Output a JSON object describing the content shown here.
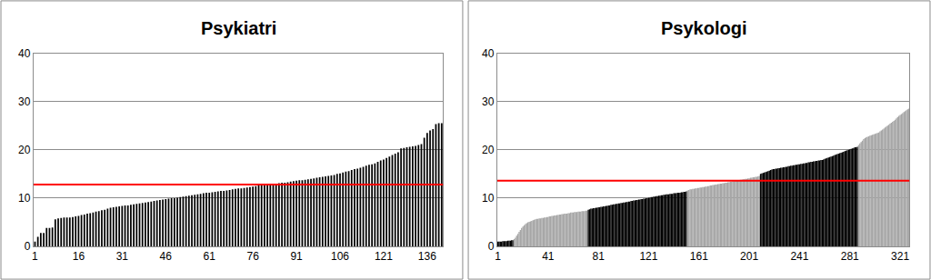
{
  "chart_data": [
    {
      "type": "bar",
      "title": "Psykiatri",
      "x": [
        1,
        2,
        3,
        4,
        5,
        6,
        7,
        8,
        9,
        10,
        11,
        12,
        13,
        14,
        15,
        16,
        17,
        18,
        19,
        20,
        21,
        22,
        23,
        24,
        25,
        26,
        27,
        28,
        29,
        30,
        31,
        32,
        33,
        34,
        35,
        36,
        37,
        38,
        39,
        40,
        41,
        42,
        43,
        44,
        45,
        46,
        47,
        48,
        49,
        50,
        51,
        52,
        53,
        54,
        55,
        56,
        57,
        58,
        59,
        60,
        61,
        62,
        63,
        64,
        65,
        66,
        67,
        68,
        69,
        70,
        71,
        72,
        73,
        74,
        75,
        76,
        77,
        78,
        79,
        80,
        81,
        82,
        83,
        84,
        85,
        86,
        87,
        88,
        89,
        90,
        91,
        92,
        93,
        94,
        95,
        96,
        97,
        98,
        99,
        100,
        101,
        102,
        103,
        104,
        105,
        106,
        107,
        108,
        109,
        110,
        111,
        112,
        113,
        114,
        115,
        116,
        117,
        118,
        119,
        120,
        121,
        122,
        123,
        124,
        125,
        126,
        127,
        128,
        129,
        130,
        131,
        132,
        133,
        134,
        135,
        136,
        137,
        138,
        139,
        140,
        141
      ],
      "values": [
        1.0,
        2.0,
        2.8,
        2.8,
        3.8,
        3.8,
        3.9,
        5.6,
        5.8,
        5.9,
        6.0,
        6.0,
        6.0,
        6.1,
        6.2,
        6.3,
        6.5,
        6.6,
        6.8,
        6.9,
        7.0,
        7.2,
        7.3,
        7.5,
        7.6,
        7.8,
        8.0,
        8.1,
        8.2,
        8.3,
        8.4,
        8.5,
        8.5,
        8.6,
        8.7,
        8.8,
        8.9,
        9.0,
        9.1,
        9.2,
        9.3,
        9.4,
        9.5,
        9.6,
        9.7,
        9.8,
        9.9,
        10.0,
        10.0,
        10.1,
        10.2,
        10.3,
        10.4,
        10.5,
        10.6,
        10.7,
        10.8,
        10.9,
        11.0,
        11.1,
        11.1,
        11.2,
        11.3,
        11.4,
        11.5,
        11.5,
        11.6,
        11.7,
        11.8,
        11.9,
        12.0,
        12.0,
        12.1,
        12.2,
        12.3,
        12.4,
        12.5,
        12.6,
        12.6,
        12.7,
        12.8,
        12.9,
        13.0,
        13.0,
        13.1,
        13.2,
        13.2,
        13.3,
        13.4,
        13.5,
        13.6,
        13.7,
        13.7,
        13.8,
        13.9,
        14.0,
        14.1,
        14.2,
        14.3,
        14.4,
        14.5,
        14.6,
        14.7,
        14.8,
        15.0,
        15.1,
        15.3,
        15.5,
        15.6,
        15.8,
        16.0,
        16.1,
        16.3,
        16.5,
        16.7,
        16.9,
        17.0,
        17.2,
        17.5,
        17.8,
        18.0,
        18.3,
        18.6,
        18.9,
        19.2,
        19.5,
        20.3,
        20.4,
        20.5,
        20.6,
        20.7,
        20.8,
        21.0,
        21.2,
        22.5,
        23.5,
        24.0,
        24.3,
        25.3,
        25.5,
        25.5
      ],
      "color": "#000000",
      "reference_line": {
        "value": 12.8,
        "color": "#ff0000"
      },
      "xlim": [
        0.5,
        141.5
      ],
      "xticks": [
        1,
        16,
        31,
        46,
        61,
        76,
        91,
        106,
        121,
        136
      ],
      "ylim": [
        0,
        40
      ],
      "yticks": [
        0,
        10,
        20,
        30,
        40
      ],
      "grid": true
    },
    {
      "type": "bar",
      "title": "Psykologi",
      "series": [
        {
          "color": "#000000",
          "x": [
            1,
            2,
            3,
            4,
            5,
            6,
            7,
            8,
            9,
            10,
            11,
            12,
            13
          ],
          "values": [
            1.0,
            1.0,
            1.0,
            1.0,
            1.1,
            1.1,
            1.1,
            1.1,
            1.2,
            1.2,
            1.2,
            1.3,
            1.3
          ]
        },
        {
          "color": "#a6a6a6",
          "x": [
            14,
            15,
            16,
            17,
            18,
            19,
            20,
            21,
            22,
            23,
            24,
            25,
            26,
            27,
            28,
            29,
            30,
            31,
            32,
            33,
            34,
            35,
            36,
            37,
            38,
            39,
            40,
            41,
            42,
            43,
            44,
            45,
            46,
            47,
            48,
            49,
            50,
            51,
            52,
            53,
            54,
            55,
            56,
            57,
            58,
            59,
            60,
            61,
            62,
            63,
            64,
            65,
            66,
            67,
            68,
            69,
            70,
            71,
            72
          ],
          "values": [
            1.5,
            1.8,
            2.2,
            2.6,
            3.0,
            3.4,
            3.8,
            4.1,
            4.4,
            4.6,
            4.8,
            5.0,
            5.1,
            5.2,
            5.3,
            5.4,
            5.5,
            5.6,
            5.7,
            5.7,
            5.8,
            5.8,
            5.9,
            5.9,
            6.0,
            6.0,
            6.1,
            6.1,
            6.2,
            6.2,
            6.3,
            6.3,
            6.4,
            6.4,
            6.5,
            6.5,
            6.6,
            6.6,
            6.7,
            6.7,
            6.8,
            6.8,
            6.8,
            6.9,
            6.9,
            7.0,
            7.0,
            7.0,
            7.1,
            7.1,
            7.1,
            7.2,
            7.2,
            7.2,
            7.3,
            7.3,
            7.3,
            7.4,
            7.4
          ]
        },
        {
          "color": "#000000",
          "x": [
            73,
            74,
            75,
            76,
            77,
            78,
            79,
            80,
            81,
            82,
            83,
            84,
            85,
            86,
            87,
            88,
            89,
            90,
            91,
            92,
            93,
            94,
            95,
            96,
            97,
            98,
            99,
            100,
            101,
            102,
            103,
            104,
            105,
            106,
            107,
            108,
            109,
            110,
            111,
            112,
            113,
            114,
            115,
            116,
            117,
            118,
            119,
            120,
            121,
            122,
            123,
            124,
            125,
            126,
            127,
            128,
            129,
            130,
            131,
            132,
            133,
            134,
            135,
            136,
            137,
            138,
            139,
            140,
            141,
            142,
            143,
            144,
            145,
            146,
            147,
            148,
            149,
            150,
            151
          ],
          "values": [
            7.6,
            7.7,
            7.8,
            7.8,
            7.9,
            7.9,
            8.0,
            8.0,
            8.1,
            8.1,
            8.2,
            8.2,
            8.3,
            8.3,
            8.4,
            8.4,
            8.5,
            8.5,
            8.6,
            8.6,
            8.7,
            8.7,
            8.8,
            8.8,
            8.9,
            8.9,
            9.0,
            9.0,
            9.1,
            9.1,
            9.2,
            9.2,
            9.3,
            9.3,
            9.4,
            9.4,
            9.5,
            9.5,
            9.6,
            9.6,
            9.7,
            9.7,
            9.8,
            9.8,
            9.9,
            9.9,
            10.0,
            10.0,
            10.1,
            10.1,
            10.2,
            10.2,
            10.3,
            10.3,
            10.4,
            10.4,
            10.5,
            10.5,
            10.6,
            10.6,
            10.7,
            10.7,
            10.8,
            10.8,
            10.8,
            10.9,
            10.9,
            10.9,
            11.0,
            11.0,
            11.0,
            11.1,
            11.1,
            11.1,
            11.2,
            11.2,
            11.3,
            11.3,
            11.4
          ]
        },
        {
          "color": "#a6a6a6",
          "x": [
            152,
            153,
            154,
            155,
            156,
            157,
            158,
            159,
            160,
            161,
            162,
            163,
            164,
            165,
            166,
            167,
            168,
            169,
            170,
            171,
            172,
            173,
            174,
            175,
            176,
            177,
            178,
            179,
            180,
            181,
            182,
            183,
            184,
            185,
            186,
            187,
            188,
            189,
            190,
            191,
            192,
            193,
            194,
            195,
            196,
            197,
            198,
            199,
            200,
            201,
            202,
            203,
            204,
            205,
            206,
            207,
            208,
            209
          ],
          "values": [
            11.6,
            11.7,
            11.8,
            11.8,
            11.9,
            11.9,
            12.0,
            12.0,
            12.1,
            12.1,
            12.2,
            12.2,
            12.3,
            12.3,
            12.4,
            12.4,
            12.5,
            12.5,
            12.6,
            12.6,
            12.7,
            12.7,
            12.8,
            12.8,
            12.9,
            12.9,
            13.0,
            13.0,
            13.1,
            13.1,
            13.2,
            13.2,
            13.3,
            13.3,
            13.4,
            13.4,
            13.5,
            13.5,
            13.6,
            13.6,
            13.7,
            13.7,
            13.8,
            13.8,
            13.9,
            13.9,
            14.0,
            14.0,
            14.1,
            14.1,
            14.2,
            14.2,
            14.3,
            14.3,
            14.4,
            14.4,
            14.5,
            14.6
          ]
        },
        {
          "color": "#000000",
          "x": [
            210,
            211,
            212,
            213,
            214,
            215,
            216,
            217,
            218,
            219,
            220,
            221,
            222,
            223,
            224,
            225,
            226,
            227,
            228,
            229,
            230,
            231,
            232,
            233,
            234,
            235,
            236,
            237,
            238,
            239,
            240,
            241,
            242,
            243,
            244,
            245,
            246,
            247,
            248,
            249,
            250,
            251,
            252,
            253,
            254,
            255,
            256,
            257,
            258,
            259,
            260,
            261,
            262,
            263,
            264,
            265,
            266,
            267,
            268,
            269,
            270,
            271,
            272,
            273,
            274,
            275,
            276,
            277,
            278,
            279,
            280,
            281,
            282,
            283,
            284,
            285,
            286,
            287
          ],
          "values": [
            15.0,
            15.1,
            15.2,
            15.3,
            15.4,
            15.5,
            15.6,
            15.7,
            15.8,
            15.9,
            16.0,
            16.0,
            16.1,
            16.1,
            16.2,
            16.2,
            16.3,
            16.3,
            16.4,
            16.4,
            16.5,
            16.5,
            16.6,
            16.6,
            16.7,
            16.7,
            16.8,
            16.8,
            16.9,
            16.9,
            17.0,
            17.0,
            17.1,
            17.1,
            17.2,
            17.2,
            17.3,
            17.3,
            17.4,
            17.4,
            17.5,
            17.5,
            17.6,
            17.6,
            17.7,
            17.7,
            17.8,
            17.8,
            17.9,
            17.9,
            18.0,
            18.1,
            18.2,
            18.3,
            18.4,
            18.5,
            18.6,
            18.7,
            18.8,
            18.9,
            19.0,
            19.1,
            19.2,
            19.3,
            19.4,
            19.5,
            19.6,
            19.7,
            19.8,
            19.9,
            20.0,
            20.1,
            20.2,
            20.3,
            20.4,
            20.5,
            20.5,
            20.6
          ]
        },
        {
          "color": "#a6a6a6",
          "x": [
            288,
            289,
            290,
            291,
            292,
            293,
            294,
            295,
            296,
            297,
            298,
            299,
            300,
            301,
            302,
            303,
            304,
            305,
            306,
            307,
            308,
            309,
            310,
            311,
            312,
            313,
            314,
            315,
            316,
            317,
            318,
            319,
            320,
            321,
            322,
            323,
            324,
            325,
            326,
            327,
            328
          ],
          "values": [
            21.0,
            21.3,
            21.6,
            21.9,
            22.2,
            22.4,
            22.6,
            22.7,
            22.8,
            22.9,
            23.0,
            23.1,
            23.2,
            23.3,
            23.4,
            23.5,
            23.6,
            23.8,
            24.0,
            24.2,
            24.4,
            24.6,
            24.8,
            25.0,
            25.2,
            25.4,
            25.6,
            25.8,
            26.0,
            26.2,
            26.5,
            26.8,
            27.0,
            27.2,
            27.4,
            27.6,
            27.8,
            28.0,
            28.2,
            28.4,
            28.5
          ]
        }
      ],
      "reference_line": {
        "value": 13.6,
        "color": "#ff0000"
      },
      "xlim": [
        0.5,
        328.5
      ],
      "xticks": [
        1,
        41,
        81,
        121,
        161,
        201,
        241,
        281,
        321
      ],
      "ylim": [
        0,
        40
      ],
      "yticks": [
        0,
        10,
        20,
        30,
        40
      ],
      "grid": true
    }
  ]
}
